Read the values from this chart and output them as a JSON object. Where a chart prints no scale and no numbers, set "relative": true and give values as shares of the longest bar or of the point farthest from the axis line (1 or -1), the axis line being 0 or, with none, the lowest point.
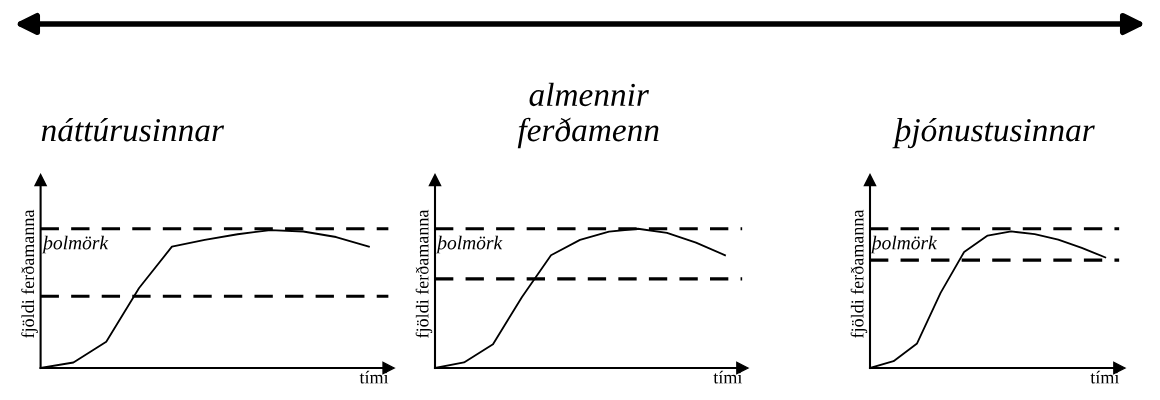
{
  "chart_data": [
    {
      "type": "line",
      "relative": true,
      "title": "náttúrusinnar",
      "xlabel": "tími",
      "ylabel": "fjöldi ferðamanna",
      "categories": [
        null,
        null,
        null,
        null,
        null,
        null,
        null,
        null,
        null,
        null,
        null
      ],
      "series": [
        {
          "color": "#000000",
          "values": [
            0,
            0.04,
            0.19,
            0.58,
            0.88,
            0.93,
            0.97,
            1,
            0.99,
            0.95,
            0.88
          ]
        }
      ],
      "ref_lines": [
        {
          "axis": "y",
          "value": 1.01,
          "label": "þolmörk",
          "color": "#000000",
          "line_style": "dashed"
        },
        {
          "axis": "y",
          "value": 0.52,
          "color": "#000000",
          "line_style": "dashed"
        }
      ],
      "marker": "none",
      "line_style": "solid"
    },
    {
      "type": "line",
      "relative": true,
      "title": "almennir\nferðamenn",
      "xlabel": "tími",
      "ylabel": "fjöldi ferðamanna",
      "categories": [
        null,
        null,
        null,
        null,
        null,
        null,
        null,
        null,
        null,
        null,
        null
      ],
      "series": [
        {
          "color": "#000000",
          "values": [
            0,
            0.04,
            0.17,
            0.51,
            0.81,
            0.92,
            0.98,
            1,
            0.97,
            0.9,
            0.81
          ]
        }
      ],
      "ref_lines": [
        {
          "axis": "y",
          "value": 1.0,
          "label": "þolmörk",
          "color": "#000000",
          "line_style": "dashed"
        },
        {
          "axis": "y",
          "value": 0.64,
          "color": "#000000",
          "line_style": "dashed"
        }
      ],
      "marker": "none",
      "line_style": "solid"
    },
    {
      "type": "line",
      "relative": true,
      "title": "þjónustusinnar",
      "xlabel": "tími",
      "ylabel": "fjöldi ferðamanna",
      "categories": [
        null,
        null,
        null,
        null,
        null,
        null,
        null,
        null,
        null,
        null,
        null
      ],
      "series": [
        {
          "color": "#000000",
          "values": [
            0,
            0.05,
            0.18,
            0.55,
            0.85,
            0.97,
            1,
            0.98,
            0.94,
            0.88,
            0.81
          ]
        }
      ],
      "ref_lines": [
        {
          "axis": "y",
          "value": 1.02,
          "label": "þolmörk",
          "color": "#000000",
          "line_style": "dashed"
        },
        {
          "axis": "y",
          "value": 0.79,
          "color": "#000000",
          "line_style": "dashed"
        }
      ],
      "marker": "none",
      "line_style": "solid"
    }
  ]
}
